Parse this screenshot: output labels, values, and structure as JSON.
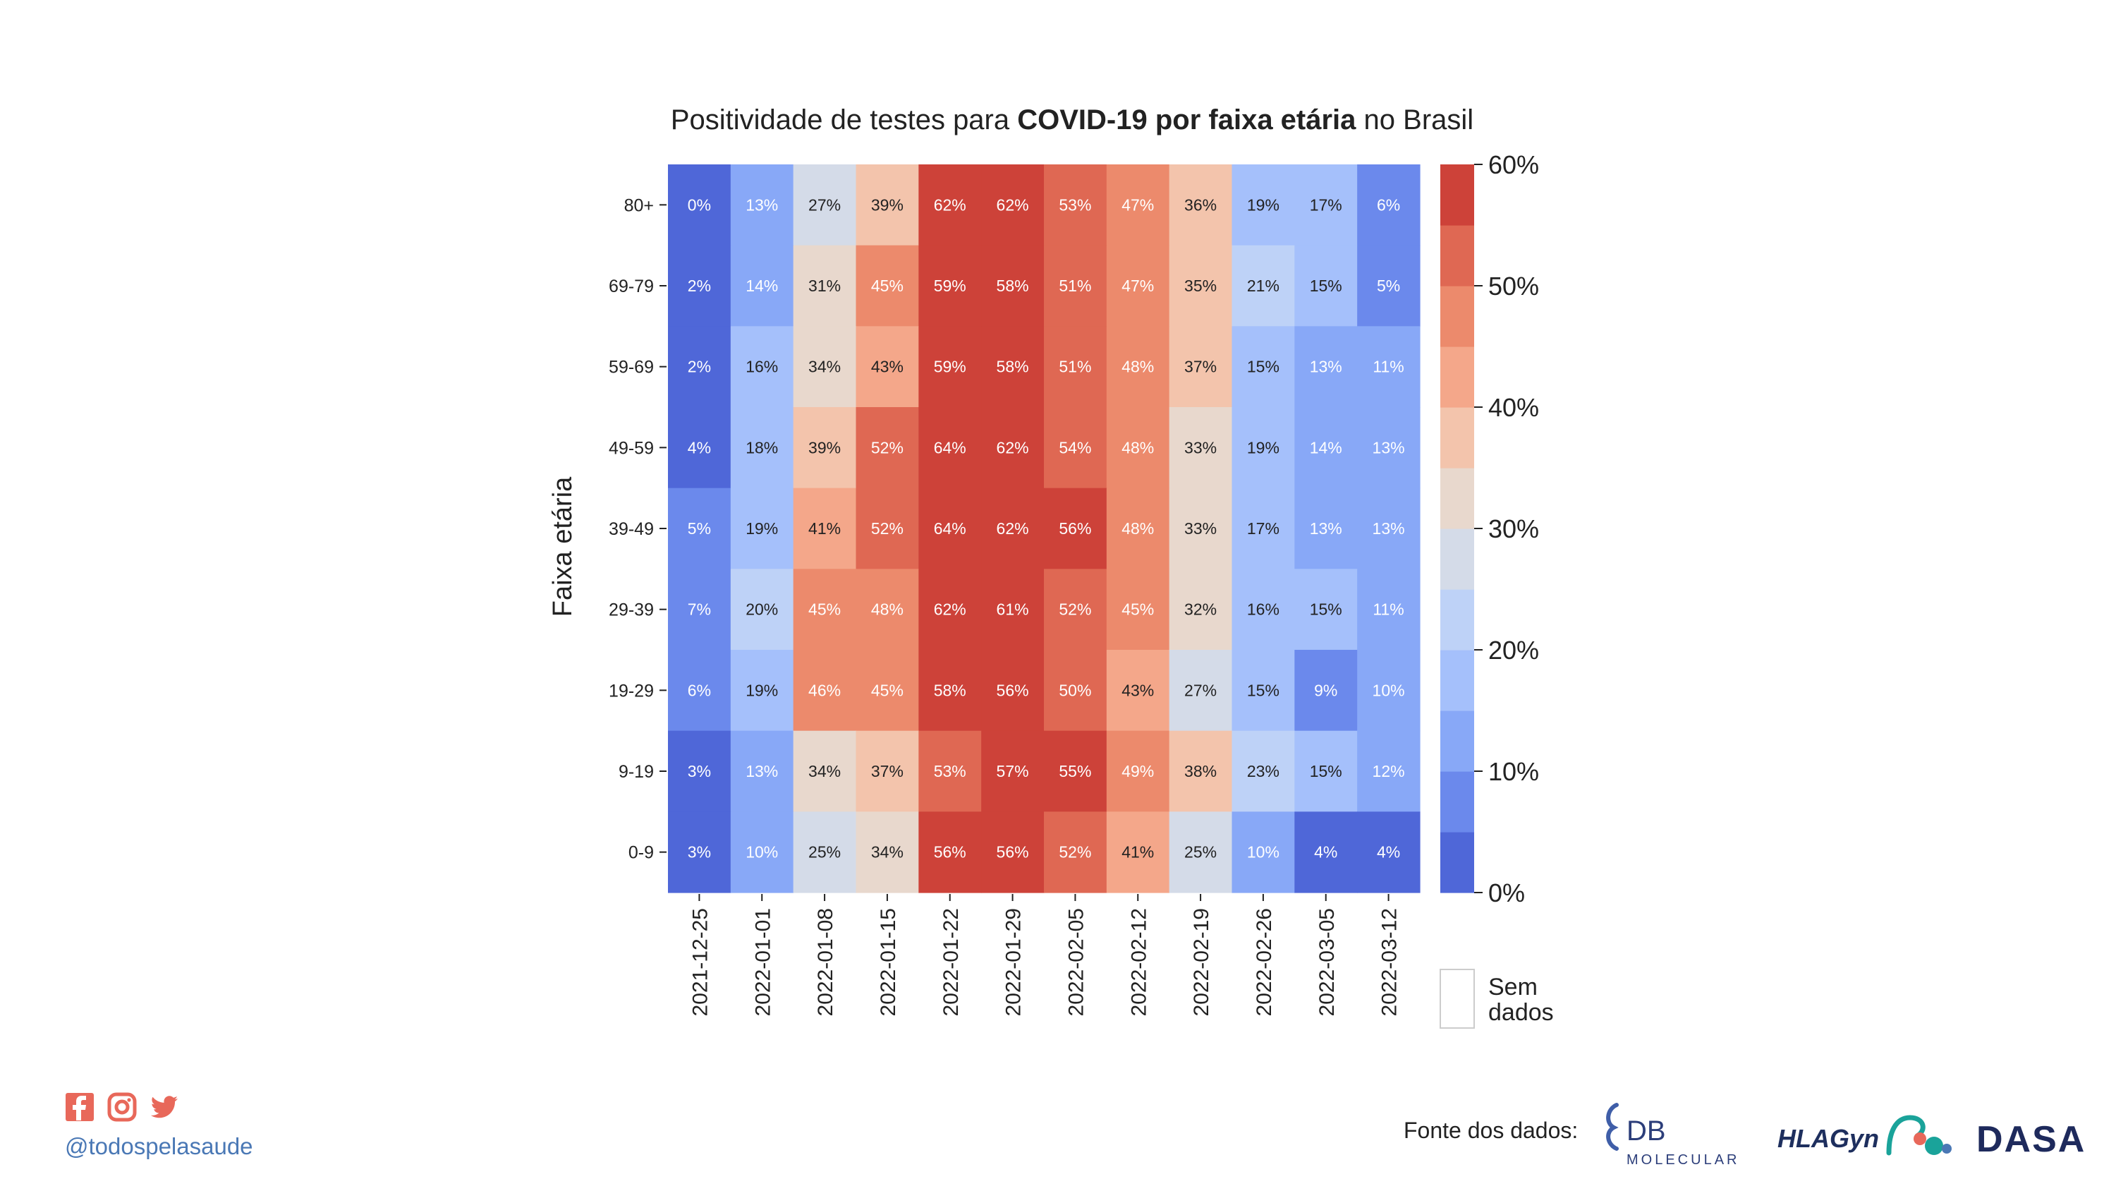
{
  "chart_data": {
    "type": "heatmap",
    "title": {
      "parts": [
        {
          "text": "Positividade de testes para ",
          "bold": false
        },
        {
          "text": "COVID-19 por faixa etária",
          "bold": true
        },
        {
          "text": " no Brasil",
          "bold": false
        }
      ]
    },
    "ylabel": "Faixa etária",
    "xlabel": "",
    "x": [
      "2021-12-25",
      "2022-01-01",
      "2022-01-08",
      "2022-01-15",
      "2022-01-22",
      "2022-01-29",
      "2022-02-05",
      "2022-02-12",
      "2022-02-19",
      "2022-02-26",
      "2022-03-05",
      "2022-03-12"
    ],
    "y": [
      "80+",
      "69-79",
      "59-69",
      "49-59",
      "39-49",
      "29-39",
      "19-29",
      "9-19",
      "0-9"
    ],
    "values": [
      [
        0,
        13,
        27,
        39,
        62,
        62,
        53,
        47,
        36,
        19,
        17,
        6
      ],
      [
        2,
        14,
        31,
        45,
        59,
        58,
        51,
        47,
        35,
        21,
        15,
        5
      ],
      [
        2,
        16,
        34,
        43,
        59,
        58,
        51,
        48,
        37,
        15,
        13,
        11
      ],
      [
        4,
        18,
        39,
        52,
        64,
        62,
        54,
        48,
        33,
        19,
        14,
        13
      ],
      [
        5,
        19,
        41,
        52,
        64,
        62,
        56,
        48,
        33,
        17,
        13,
        13
      ],
      [
        7,
        20,
        45,
        48,
        62,
        61,
        52,
        45,
        32,
        16,
        15,
        11
      ],
      [
        6,
        19,
        46,
        45,
        58,
        56,
        50,
        43,
        27,
        15,
        9,
        10
      ],
      [
        3,
        13,
        34,
        37,
        53,
        57,
        55,
        49,
        38,
        23,
        15,
        12
      ],
      [
        3,
        10,
        25,
        34,
        56,
        56,
        52,
        41,
        25,
        10,
        4,
        4
      ]
    ],
    "value_suffix": "%",
    "colorbar": {
      "range": [
        0,
        60
      ],
      "ticks": [
        "0%",
        "10%",
        "20%",
        "30%",
        "40%",
        "50%",
        "60%"
      ],
      "colors": [
        "#4f67d8",
        "#6b89ec",
        "#88a8f7",
        "#a5c0fb",
        "#bed2f7",
        "#d4dbe8",
        "#e8d8cd",
        "#f3c4ac",
        "#f4a78a",
        "#ec8a6c",
        "#df6853",
        "#cd4239"
      ]
    },
    "missing_label": [
      "Sem",
      "dados"
    ]
  },
  "footer": {
    "handle": "@todospelasaude",
    "source_label": "Fonte dos dados:",
    "logos": [
      "DB",
      "MOLECULAR",
      "HLAGyn",
      "DASA"
    ],
    "social_icons": [
      "facebook-icon",
      "instagram-icon",
      "twitter-icon"
    ],
    "social_color": "#e8685a"
  }
}
